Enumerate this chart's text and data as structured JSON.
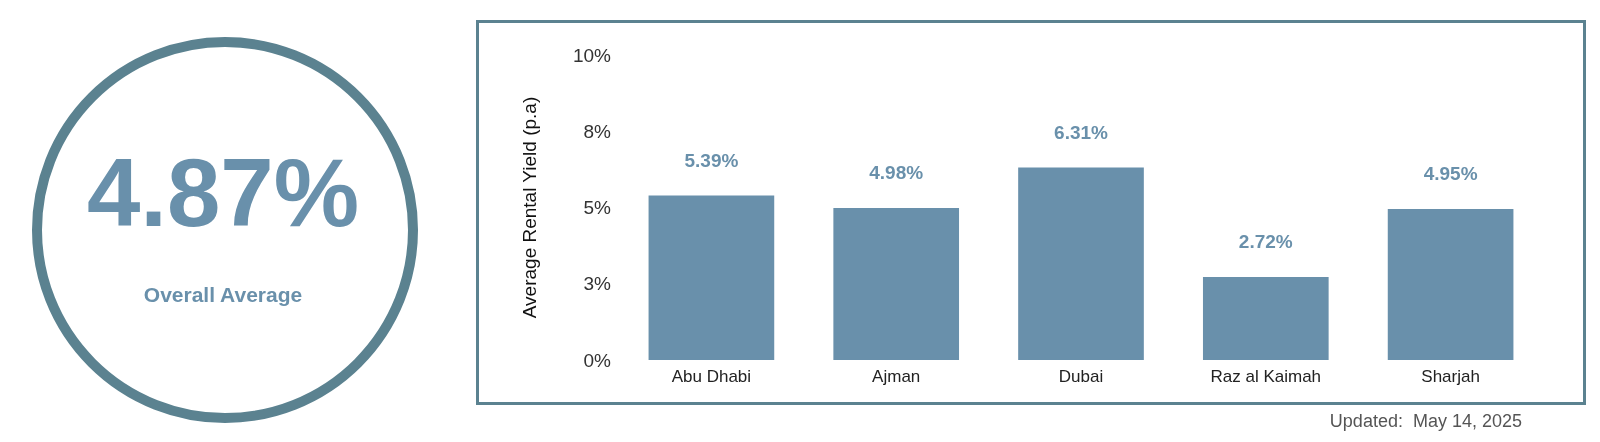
{
  "chart_data": [
    {
      "type": "other",
      "title": "4.87%",
      "subtitle": "Overall Average",
      "color": "#5b8290"
    },
    {
      "type": "bar",
      "ylabel": "Average Rental Yield (p.a)",
      "categories": [
        "Abu Dhabi",
        "Ajman",
        "Dubai",
        "Raz al Kaimah",
        "Sharjah"
      ],
      "values": [
        5.39,
        4.98,
        6.31,
        2.72,
        4.95
      ],
      "value_labels": [
        "5.39%",
        "4.98%",
        "6.31%",
        "2.72%",
        "4.95%"
      ],
      "color": "#6990ab",
      "ylim": [
        0,
        10
      ],
      "yticks": [
        {
          "value": 0,
          "label": "0%"
        },
        {
          "value": 2.5,
          "label": "3%"
        },
        {
          "value": 5,
          "label": "5%"
        },
        {
          "value": 7.5,
          "label": "8%"
        },
        {
          "value": 10,
          "label": "10%"
        }
      ],
      "grid": false,
      "annotations": [
        "Updated:  May 14, 2025"
      ]
    }
  ]
}
